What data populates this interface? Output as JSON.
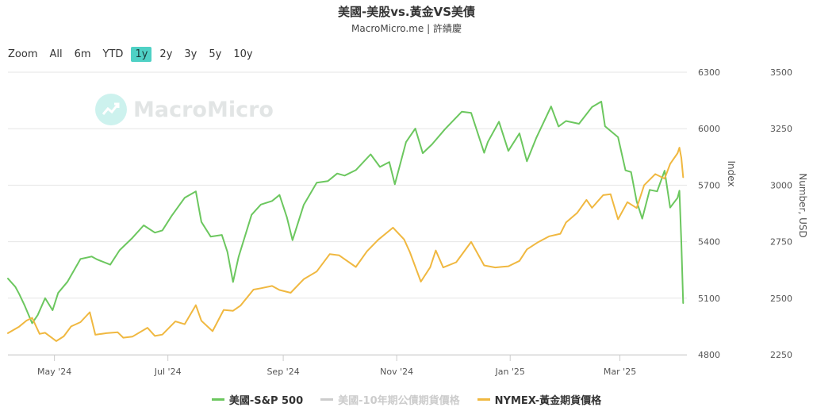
{
  "header": {
    "title": "美國-美股vs.黃金VS美債",
    "subtitle": "MacroMicro.me | 許績慶"
  },
  "zoom": {
    "label": "Zoom",
    "buttons": [
      "All",
      "6m",
      "YTD",
      "1y",
      "2y",
      "3y",
      "5y",
      "10y"
    ],
    "active": "1y"
  },
  "watermark": {
    "text": "MacroMicro"
  },
  "chart_data": {
    "type": "line",
    "x_axis": {
      "type": "date",
      "range": [
        "2024-04-06",
        "2025-04-06"
      ],
      "tick_labels": [
        "May '24",
        "Jul '24",
        "Sep '24",
        "Nov '24",
        "Jan '25",
        "Mar '25"
      ],
      "tick_dates": [
        "2024-05-01",
        "2024-07-01",
        "2024-09-01",
        "2024-11-01",
        "2025-01-01",
        "2025-03-01"
      ]
    },
    "y_axes": [
      {
        "id": "left",
        "label": "Index",
        "range": [
          4800,
          6300
        ],
        "ticks": [
          4800,
          5100,
          5400,
          5700,
          6000,
          6300
        ]
      },
      {
        "id": "right",
        "label": "Number, USD",
        "range": [
          2250,
          3500
        ],
        "ticks": [
          2250,
          2500,
          2750,
          3000,
          3250,
          3500
        ]
      }
    ],
    "grid": true,
    "legend_position": "bottom",
    "series": [
      {
        "name": "美國-S&P 500",
        "axis": "left",
        "color": "#6cc75f",
        "points": [
          [
            "2024-04-06",
            5204
          ],
          [
            "2024-04-10",
            5160
          ],
          [
            "2024-04-12",
            5123
          ],
          [
            "2024-04-15",
            5061
          ],
          [
            "2024-04-19",
            4967
          ],
          [
            "2024-04-22",
            5010
          ],
          [
            "2024-04-26",
            5100
          ],
          [
            "2024-04-30",
            5036
          ],
          [
            "2024-05-03",
            5128
          ],
          [
            "2024-05-08",
            5187
          ],
          [
            "2024-05-15",
            5308
          ],
          [
            "2024-05-21",
            5321
          ],
          [
            "2024-05-24",
            5305
          ],
          [
            "2024-05-31",
            5278
          ],
          [
            "2024-06-05",
            5354
          ],
          [
            "2024-06-12",
            5421
          ],
          [
            "2024-06-18",
            5487
          ],
          [
            "2024-06-24",
            5448
          ],
          [
            "2024-06-28",
            5460
          ],
          [
            "2024-07-03",
            5537
          ],
          [
            "2024-07-10",
            5633
          ],
          [
            "2024-07-16",
            5667
          ],
          [
            "2024-07-19",
            5505
          ],
          [
            "2024-07-24",
            5427
          ],
          [
            "2024-07-30",
            5436
          ],
          [
            "2024-08-02",
            5346
          ],
          [
            "2024-08-05",
            5186
          ],
          [
            "2024-08-08",
            5319
          ],
          [
            "2024-08-15",
            5543
          ],
          [
            "2024-08-20",
            5597
          ],
          [
            "2024-08-26",
            5616
          ],
          [
            "2024-08-30",
            5648
          ],
          [
            "2024-09-03",
            5528
          ],
          [
            "2024-09-06",
            5408
          ],
          [
            "2024-09-12",
            5595
          ],
          [
            "2024-09-19",
            5713
          ],
          [
            "2024-09-25",
            5722
          ],
          [
            "2024-09-30",
            5762
          ],
          [
            "2024-10-04",
            5751
          ],
          [
            "2024-10-10",
            5780
          ],
          [
            "2024-10-18",
            5864
          ],
          [
            "2024-10-23",
            5797
          ],
          [
            "2024-10-28",
            5823
          ],
          [
            "2024-10-31",
            5705
          ],
          [
            "2024-11-06",
            5929
          ],
          [
            "2024-11-11",
            6001
          ],
          [
            "2024-11-15",
            5870
          ],
          [
            "2024-11-20",
            5917
          ],
          [
            "2024-11-27",
            5998
          ],
          [
            "2024-12-06",
            6090
          ],
          [
            "2024-12-11",
            6084
          ],
          [
            "2024-12-18",
            5872
          ],
          [
            "2024-12-20",
            5930
          ],
          [
            "2024-12-26",
            6037
          ],
          [
            "2024-12-31",
            5882
          ],
          [
            "2025-01-06",
            5975
          ],
          [
            "2025-01-10",
            5827
          ],
          [
            "2025-01-15",
            5950
          ],
          [
            "2025-01-23",
            6118
          ],
          [
            "2025-01-27",
            6012
          ],
          [
            "2025-01-31",
            6041
          ],
          [
            "2025-02-07",
            6026
          ],
          [
            "2025-02-14",
            6115
          ],
          [
            "2025-02-19",
            6144
          ],
          [
            "2025-02-21",
            6013
          ],
          [
            "2025-02-28",
            5955
          ],
          [
            "2025-03-04",
            5779
          ],
          [
            "2025-03-07",
            5770
          ],
          [
            "2025-03-10",
            5614
          ],
          [
            "2025-03-13",
            5522
          ],
          [
            "2025-03-17",
            5675
          ],
          [
            "2025-03-21",
            5667
          ],
          [
            "2025-03-25",
            5777
          ],
          [
            "2025-03-28",
            5581
          ],
          [
            "2025-04-01",
            5633
          ],
          [
            "2025-04-02",
            5671
          ],
          [
            "2025-04-03",
            5397
          ],
          [
            "2025-04-04",
            5074
          ]
        ]
      },
      {
        "name": "美國-10年期公債期貨價格",
        "axis": "right",
        "color": "#c8c8c8",
        "hidden": true,
        "points": []
      },
      {
        "name": "NYMEX-黃金期貨價格",
        "axis": "right",
        "color": "#f0b840",
        "points": [
          [
            "2024-04-06",
            2345
          ],
          [
            "2024-04-12",
            2374
          ],
          [
            "2024-04-16",
            2401
          ],
          [
            "2024-04-19",
            2413
          ],
          [
            "2024-04-23",
            2342
          ],
          [
            "2024-04-26",
            2347
          ],
          [
            "2024-05-02",
            2310
          ],
          [
            "2024-05-06",
            2331
          ],
          [
            "2024-05-10",
            2375
          ],
          [
            "2024-05-15",
            2394
          ],
          [
            "2024-05-20",
            2438
          ],
          [
            "2024-05-23",
            2338
          ],
          [
            "2024-05-29",
            2345
          ],
          [
            "2024-06-04",
            2349
          ],
          [
            "2024-06-07",
            2325
          ],
          [
            "2024-06-12",
            2330
          ],
          [
            "2024-06-20",
            2369
          ],
          [
            "2024-06-24",
            2333
          ],
          [
            "2024-06-28",
            2339
          ],
          [
            "2024-07-05",
            2397
          ],
          [
            "2024-07-10",
            2385
          ],
          [
            "2024-07-16",
            2469
          ],
          [
            "2024-07-19",
            2400
          ],
          [
            "2024-07-25",
            2354
          ],
          [
            "2024-07-31",
            2448
          ],
          [
            "2024-08-05",
            2444
          ],
          [
            "2024-08-09",
            2467
          ],
          [
            "2024-08-16",
            2538
          ],
          [
            "2024-08-20",
            2544
          ],
          [
            "2024-08-26",
            2554
          ],
          [
            "2024-08-30",
            2536
          ],
          [
            "2024-09-05",
            2524
          ],
          [
            "2024-09-12",
            2584
          ],
          [
            "2024-09-19",
            2618
          ],
          [
            "2024-09-26",
            2695
          ],
          [
            "2024-10-01",
            2690
          ],
          [
            "2024-10-10",
            2638
          ],
          [
            "2024-10-16",
            2707
          ],
          [
            "2024-10-22",
            2758
          ],
          [
            "2024-10-30",
            2812
          ],
          [
            "2024-11-05",
            2760
          ],
          [
            "2024-11-08",
            2705
          ],
          [
            "2024-11-14",
            2573
          ],
          [
            "2024-11-19",
            2637
          ],
          [
            "2024-11-22",
            2711
          ],
          [
            "2024-11-26",
            2636
          ],
          [
            "2024-12-03",
            2659
          ],
          [
            "2024-12-11",
            2749
          ],
          [
            "2024-12-18",
            2645
          ],
          [
            "2024-12-24",
            2636
          ],
          [
            "2024-12-31",
            2641
          ],
          [
            "2025-01-06",
            2665
          ],
          [
            "2025-01-10",
            2716
          ],
          [
            "2025-01-16",
            2748
          ],
          [
            "2025-01-22",
            2774
          ],
          [
            "2025-01-28",
            2785
          ],
          [
            "2025-01-31",
            2835
          ],
          [
            "2025-02-06",
            2877
          ],
          [
            "2025-02-11",
            2935
          ],
          [
            "2025-02-14",
            2900
          ],
          [
            "2025-02-20",
            2956
          ],
          [
            "2025-02-24",
            2960
          ],
          [
            "2025-02-28",
            2849
          ],
          [
            "2025-03-05",
            2925
          ],
          [
            "2025-03-10",
            2899
          ],
          [
            "2025-03-14",
            3000
          ],
          [
            "2025-03-20",
            3049
          ],
          [
            "2025-03-25",
            3029
          ],
          [
            "2025-03-28",
            3094
          ],
          [
            "2025-04-01",
            3142
          ],
          [
            "2025-04-02",
            3166
          ],
          [
            "2025-04-03",
            3121
          ],
          [
            "2025-04-04",
            3035
          ]
        ]
      }
    ]
  }
}
